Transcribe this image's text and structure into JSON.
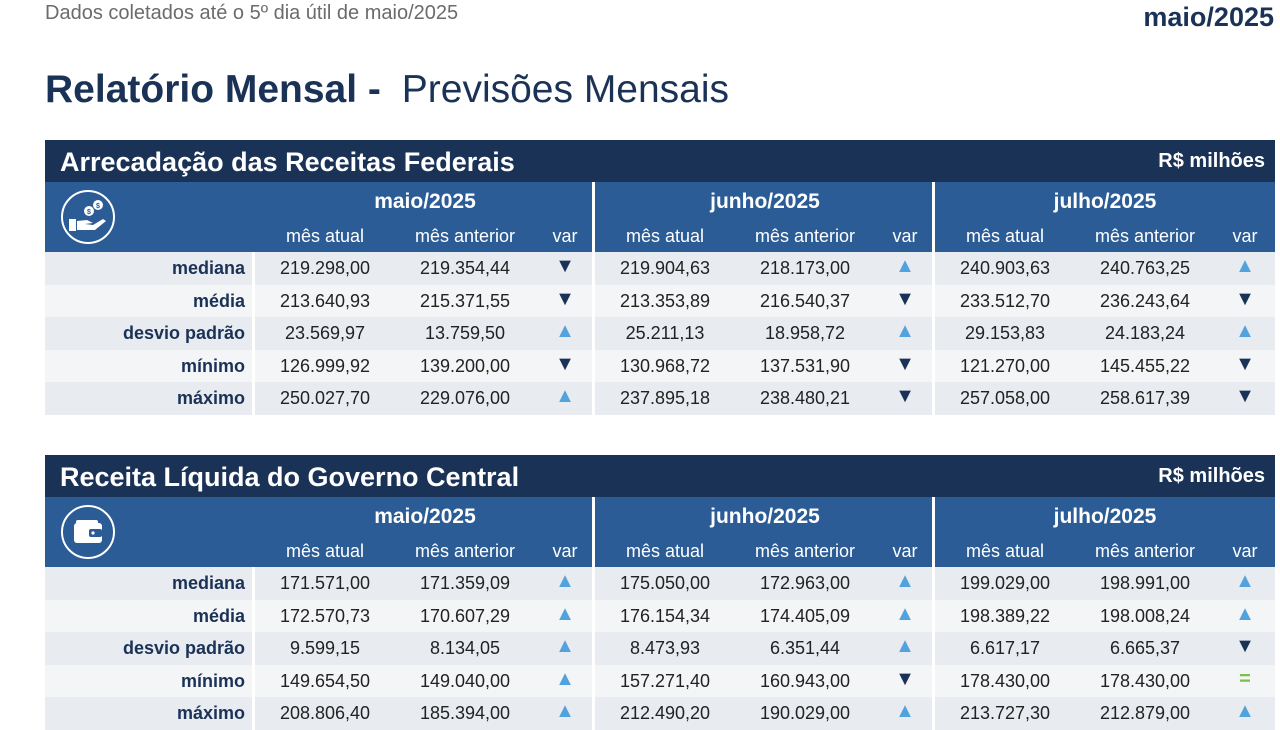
{
  "top_note": "Dados coletados até o 5º dia útil de maio/2025",
  "period": "maio/2025",
  "report_title": {
    "bold": "Relatório Mensal -",
    "light": "Previsões Mensais"
  },
  "columns": {
    "months": [
      "maio/2025",
      "junho/2025",
      "julho/2025"
    ],
    "sub": [
      "mês atual",
      "mês anterior",
      "var"
    ]
  },
  "sections": [
    {
      "title": "Arrecadação das Receitas Federais",
      "unit": "R$ milhões",
      "icon": "money-hand-icon",
      "rows": [
        {
          "label": "mediana",
          "m1": [
            "219.298,00",
            "219.354,44"
          ],
          "v1": "▼",
          "m2": [
            "219.904,63",
            "218.173,00"
          ],
          "v2": "▲",
          "m3": [
            "240.903,63",
            "240.763,25"
          ],
          "v3": "▲"
        },
        {
          "label": "média",
          "m1": [
            "213.640,93",
            "215.371,55"
          ],
          "v1": "▼",
          "m2": [
            "213.353,89",
            "216.540,37"
          ],
          "v2": "▼",
          "m3": [
            "233.512,70",
            "236.243,64"
          ],
          "v3": "▼"
        },
        {
          "label": "desvio padrão",
          "m1": [
            "23.569,97",
            "13.759,50"
          ],
          "v1": "▲",
          "m2": [
            "25.211,13",
            "18.958,72"
          ],
          "v2": "▲",
          "m3": [
            "29.153,83",
            "24.183,24"
          ],
          "v3": "▲"
        },
        {
          "label": "mínimo",
          "m1": [
            "126.999,92",
            "139.200,00"
          ],
          "v1": "▼",
          "m2": [
            "130.968,72",
            "137.531,90"
          ],
          "v2": "▼",
          "m3": [
            "121.270,00",
            "145.455,22"
          ],
          "v3": "▼"
        },
        {
          "label": "máximo",
          "m1": [
            "250.027,70",
            "229.076,00"
          ],
          "v1": "▲",
          "m2": [
            "237.895,18",
            "238.480,21"
          ],
          "v2": "▼",
          "m3": [
            "257.058,00",
            "258.617,39"
          ],
          "v3": "▼"
        }
      ]
    },
    {
      "title": "Receita Líquida do Governo Central",
      "unit": "R$ milhões",
      "icon": "wallet-icon",
      "rows": [
        {
          "label": "mediana",
          "m1": [
            "171.571,00",
            "171.359,09"
          ],
          "v1": "▲",
          "m2": [
            "175.050,00",
            "172.963,00"
          ],
          "v2": "▲",
          "m3": [
            "199.029,00",
            "198.991,00"
          ],
          "v3": "▲"
        },
        {
          "label": "média",
          "m1": [
            "172.570,73",
            "170.607,29"
          ],
          "v1": "▲",
          "m2": [
            "176.154,34",
            "174.405,09"
          ],
          "v2": "▲",
          "m3": [
            "198.389,22",
            "198.008,24"
          ],
          "v3": "▲"
        },
        {
          "label": "desvio padrão",
          "m1": [
            "9.599,15",
            "8.134,05"
          ],
          "v1": "▲",
          "m2": [
            "8.473,93",
            "6.351,44"
          ],
          "v2": "▲",
          "m3": [
            "6.617,17",
            "6.665,37"
          ],
          "v3": "▼"
        },
        {
          "label": "mínimo",
          "m1": [
            "149.654,50",
            "149.040,00"
          ],
          "v1": "▲",
          "m2": [
            "157.271,40",
            "160.943,00"
          ],
          "v2": "▼",
          "m3": [
            "178.430,00",
            "178.430,00"
          ],
          "v3": "="
        },
        {
          "label": "máximo",
          "m1": [
            "208.806,40",
            "185.394,00"
          ],
          "v1": "▲",
          "m2": [
            "212.490,20",
            "190.029,00"
          ],
          "v2": "▲",
          "m3": [
            "213.727,30",
            "212.879,00"
          ],
          "v3": "▲"
        }
      ]
    }
  ]
}
